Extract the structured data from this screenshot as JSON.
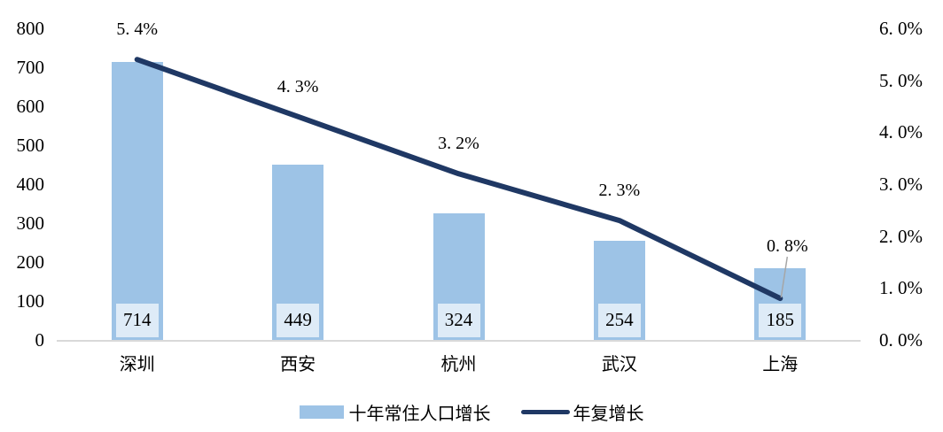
{
  "chart_data": {
    "type": "combo-bar-line",
    "categories": [
      "深圳",
      "西安",
      "杭州",
      "武汉",
      "上海"
    ],
    "series": [
      {
        "name": "十年常住人口增长",
        "type": "bar",
        "axis": "left",
        "values": [
          714,
          449,
          324,
          254,
          185
        ],
        "value_labels": [
          "714",
          "449",
          "324",
          "254",
          "185"
        ],
        "color": "#9DC3E6",
        "value_label_bg": "#DEEBF7"
      },
      {
        "name": "年复增长",
        "type": "line",
        "axis": "right",
        "values": [
          5.4,
          4.3,
          3.2,
          2.3,
          0.8
        ],
        "point_labels": [
          "5. 4%",
          "4. 3%",
          "3. 2%",
          "2. 3%",
          "0. 8%"
        ],
        "color": "#1F3864",
        "leader_line_on_last_point": true,
        "leader_line_color": "#A6A6A6"
      }
    ],
    "axes": {
      "left": {
        "min": 0,
        "max": 800,
        "ticks": [
          "0",
          "100",
          "200",
          "300",
          "400",
          "500",
          "600",
          "700",
          "800"
        ]
      },
      "right": {
        "min": 0,
        "max": 6,
        "ticks": [
          "0. 0%",
          "1. 0%",
          "2. 0%",
          "3. 0%",
          "4. 0%",
          "5. 0%",
          "6. 0%"
        ]
      }
    },
    "grid": false,
    "baseline_color": "#D9D9D9",
    "legend": {
      "position": "bottom",
      "items": [
        {
          "label": "十年常住人口增长",
          "swatch": "bar",
          "color": "#9DC3E6"
        },
        {
          "label": "年复增长",
          "swatch": "line",
          "color": "#1F3864"
        }
      ]
    }
  }
}
